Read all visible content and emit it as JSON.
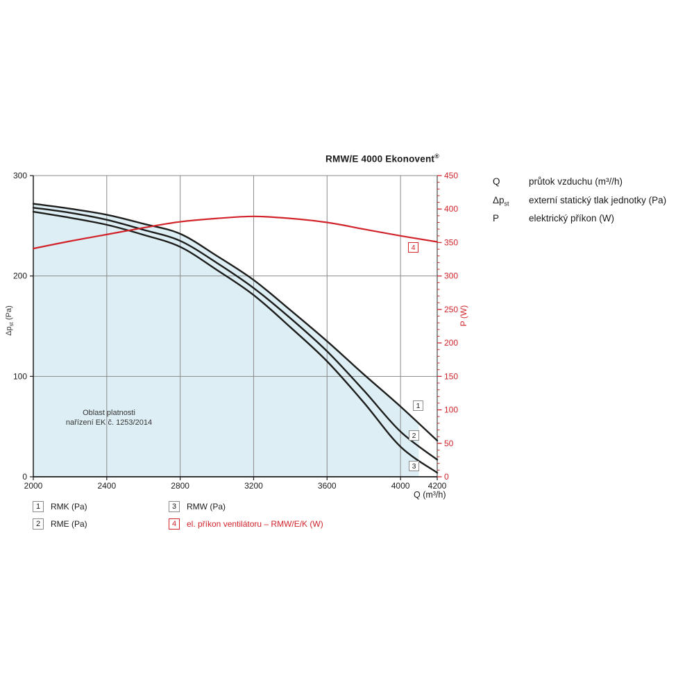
{
  "title": {
    "text": "RMW/E 4000 Ekonovent",
    "sup": "®"
  },
  "info_legend": {
    "rows": [
      {
        "symbol": "Q",
        "symbol_sub": "",
        "desc": "průtok vzduchu (m³//h)"
      },
      {
        "symbol": "Δp",
        "symbol_sub": "st",
        "desc": "externí statický tlak jednotky (Pa)"
      },
      {
        "symbol": "P",
        "symbol_sub": "",
        "desc": "elektrický příkon (W)"
      }
    ]
  },
  "axes": {
    "x_label": "Q (m³/h)",
    "y_left_label_main": "Δp",
    "y_left_label_sub": "st",
    "y_left_label_unit": " (Pa)",
    "y_right_label": "P (W)"
  },
  "region": {
    "line1": "Oblast platnosti",
    "line2": "nařízení EK č. 1253/2014"
  },
  "curve_markers": [
    {
      "num": "1"
    },
    {
      "num": "2"
    },
    {
      "num": "3"
    },
    {
      "num": "4"
    }
  ],
  "bottom_legend": [
    {
      "num": "1",
      "label": "RMK (Pa)"
    },
    {
      "num": "2",
      "label": "RME (Pa)"
    },
    {
      "num": "3",
      "label": "RMW (Pa)"
    },
    {
      "num": "4",
      "label": "el. příkon ventilátoru – RMW/E/K (W)"
    }
  ],
  "colors": {
    "accent_red": "#d2232a",
    "curve_black": "#1d1d1b",
    "grid": "#8a8a8a",
    "axis": "#1a1a1a",
    "shade": "#ddeef4"
  },
  "chart_data": {
    "type": "line",
    "title": "RMW/E 4000 Ekonovent®",
    "xlabel": "Q (m³/h)",
    "ylabel_left": "Δpst (Pa)",
    "ylabel_right": "P (W)",
    "xlim": [
      2000,
      4200
    ],
    "ylim_left": [
      0,
      300
    ],
    "ylim_right": [
      0,
      450
    ],
    "x_ticks": [
      2000,
      2400,
      2800,
      3200,
      3600,
      4000,
      4200
    ],
    "y_ticks_left": [
      0,
      100,
      200,
      300
    ],
    "y_ticks_right": [
      0,
      50,
      100,
      150,
      200,
      250,
      300,
      350,
      400,
      450
    ],
    "y_right_minor_step": 10,
    "grid": true,
    "legend_position": "bottom",
    "x": [
      2000,
      2200,
      2400,
      2600,
      2800,
      3000,
      3200,
      3400,
      3600,
      3800,
      4000,
      4200
    ],
    "series": [
      {
        "name": "RMK (Pa)",
        "marker": "1",
        "axis": "left",
        "color": "#1d1d1b",
        "values": [
          272,
          267,
          261,
          252,
          242,
          220,
          196,
          166,
          135,
          102,
          70,
          36
        ]
      },
      {
        "name": "RME (Pa)",
        "marker": "2",
        "axis": "left",
        "color": "#1d1d1b",
        "values": [
          268,
          263,
          256,
          246,
          235,
          213,
          188,
          158,
          125,
          86,
          45,
          17
        ]
      },
      {
        "name": "RMW (Pa)",
        "marker": "3",
        "axis": "left",
        "color": "#1d1d1b",
        "values": [
          264,
          258,
          251,
          241,
          229,
          206,
          181,
          149,
          115,
          74,
          30,
          4
        ]
      },
      {
        "name": "el. příkon ventilátoru – RMW/E/K (W)",
        "marker": "4",
        "axis": "right",
        "color": "#d2232a",
        "values": [
          341,
          352,
          362,
          372,
          381,
          386,
          389,
          386,
          380,
          370,
          360,
          351
        ]
      }
    ],
    "shaded_region": {
      "label": "Oblast platnosti nařízení EK č. 1253/2014",
      "fill": "#ddeef4",
      "under_series": "RMK (Pa)",
      "x_max": 4100
    }
  }
}
